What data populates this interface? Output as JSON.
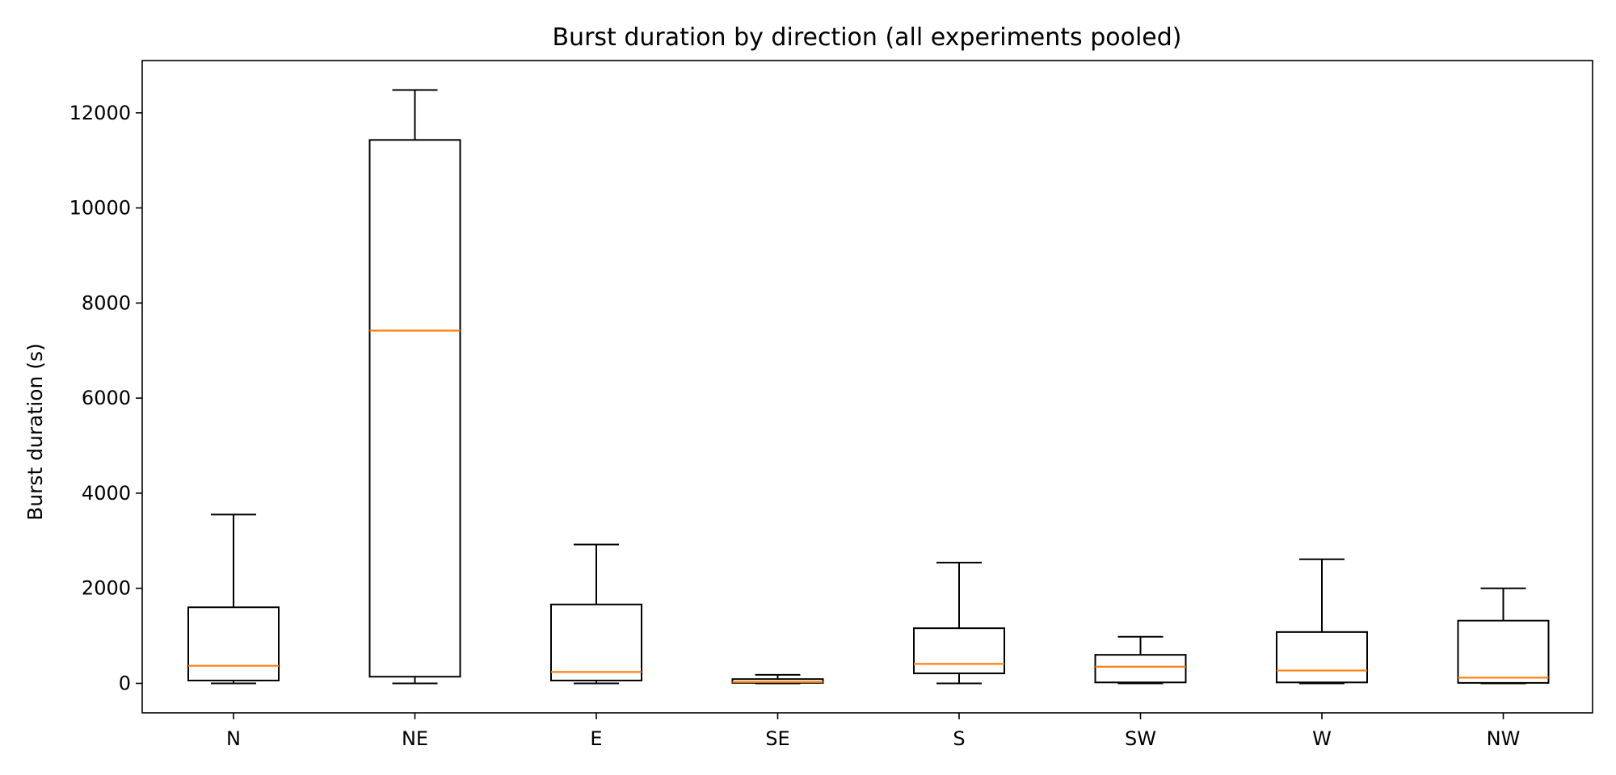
{
  "chart_data": {
    "type": "boxplot",
    "title": "Burst duration by direction (all experiments pooled)",
    "xlabel": "",
    "ylabel": "Burst duration (s)",
    "ylim": [
      -620,
      13100
    ],
    "yticks": [
      0,
      2000,
      4000,
      6000,
      8000,
      10000,
      12000
    ],
    "grid": false,
    "categories": [
      "N",
      "NE",
      "E",
      "SE",
      "S",
      "SW",
      "W",
      "NW"
    ],
    "boxes": [
      {
        "whisker_low": 0,
        "q1": 60,
        "median": 370,
        "q3": 1600,
        "whisker_high": 3550
      },
      {
        "whisker_low": 0,
        "q1": 140,
        "median": 7420,
        "q3": 11430,
        "whisker_high": 12480
      },
      {
        "whisker_low": 0,
        "q1": 60,
        "median": 240,
        "q3": 1660,
        "whisker_high": 2920
      },
      {
        "whisker_low": 0,
        "q1": 10,
        "median": 30,
        "q3": 90,
        "whisker_high": 180
      },
      {
        "whisker_low": 0,
        "q1": 210,
        "median": 410,
        "q3": 1160,
        "whisker_high": 2540
      },
      {
        "whisker_low": 0,
        "q1": 20,
        "median": 350,
        "q3": 600,
        "whisker_high": 980
      },
      {
        "whisker_low": 0,
        "q1": 20,
        "median": 270,
        "q3": 1080,
        "whisker_high": 2610
      },
      {
        "whisker_low": 0,
        "q1": 10,
        "median": 120,
        "q3": 1320,
        "whisker_high": 2000
      }
    ],
    "colors": {
      "box": "#000000",
      "median": "#ff7f0e",
      "axes": "#000000"
    }
  }
}
